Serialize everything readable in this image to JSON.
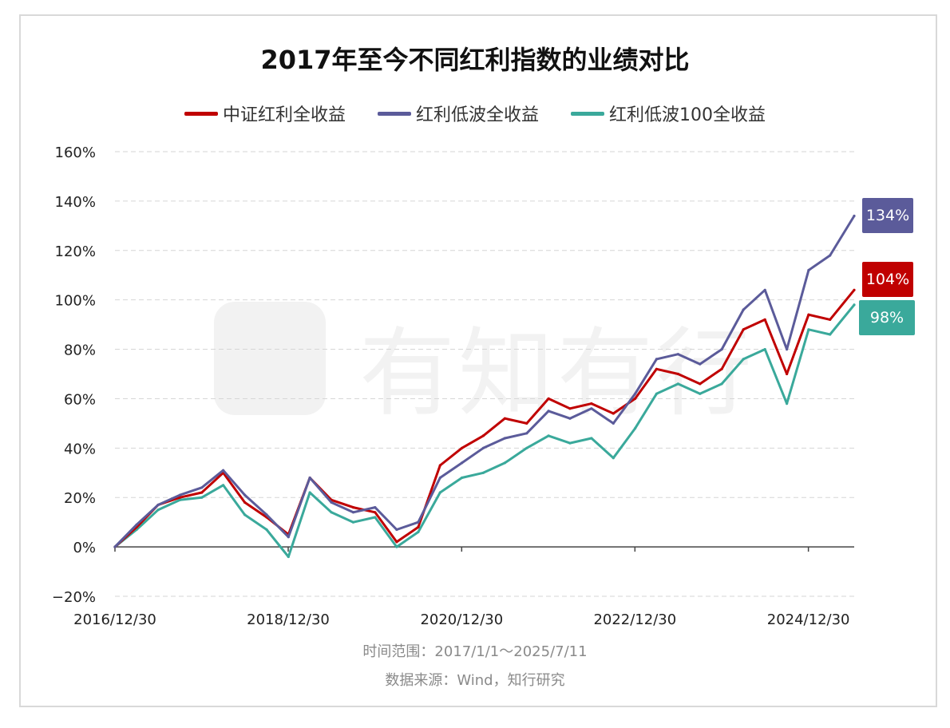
{
  "title": "2017年至今不同红利指数的业绩对比",
  "watermark_text": "有知有行",
  "footnote_range": "时间范围：2017/1/1～2025/7/11",
  "footnote_source": "数据来源：Wind，知行研究",
  "colors": {
    "red": "#c00000",
    "purple": "#5b5b9a",
    "teal": "#3aa99b"
  },
  "chart_data": {
    "type": "line",
    "title": "2017年至今不同红利指数的业绩对比",
    "xlabel": "",
    "ylabel": "",
    "y_unit": "%",
    "ylim": [
      -20,
      160
    ],
    "yticks": [
      -20,
      0,
      20,
      40,
      60,
      80,
      100,
      120,
      140,
      160
    ],
    "ytick_labels": [
      "−20%",
      "0%",
      "20%",
      "40%",
      "60%",
      "80%",
      "100%",
      "120%",
      "140%",
      "160%"
    ],
    "xlim": [
      "2016/12/30",
      "2025/07/11"
    ],
    "xtick_labels": [
      "2016/12/30",
      "2018/12/30",
      "2020/12/30",
      "2022/12/30",
      "2024/12/30"
    ],
    "grid": "horizontal dashed",
    "legend_position": "top-center",
    "x": [
      "2016/12/30",
      "2017/03/31",
      "2017/06/30",
      "2017/09/30",
      "2017/12/31",
      "2018/03/31",
      "2018/06/30",
      "2018/09/30",
      "2018/12/31",
      "2019/03/31",
      "2019/06/30",
      "2019/09/30",
      "2019/12/31",
      "2020/03/31",
      "2020/06/30",
      "2020/09/30",
      "2020/12/31",
      "2021/03/31",
      "2021/06/30",
      "2021/09/30",
      "2021/12/31",
      "2022/03/31",
      "2022/06/30",
      "2022/09/30",
      "2022/12/31",
      "2023/03/31",
      "2023/06/30",
      "2023/09/30",
      "2023/12/31",
      "2024/03/31",
      "2024/06/30",
      "2024/09/30",
      "2024/12/31",
      "2025/03/31",
      "2025/07/11"
    ],
    "series": [
      {
        "name": "中证红利全收益",
        "color": "#c00000",
        "end_label": "104%",
        "values": [
          0,
          8,
          17,
          20,
          22,
          30,
          18,
          12,
          5,
          28,
          19,
          16,
          14,
          2,
          8,
          33,
          40,
          45,
          52,
          50,
          60,
          56,
          58,
          54,
          60,
          72,
          70,
          66,
          72,
          88,
          92,
          70,
          94,
          92,
          104
        ]
      },
      {
        "name": "红利低波全收益",
        "color": "#5b5b9a",
        "end_label": "134%",
        "values": [
          0,
          9,
          17,
          21,
          24,
          31,
          21,
          13,
          4,
          28,
          18,
          14,
          16,
          7,
          10,
          28,
          34,
          40,
          44,
          46,
          55,
          52,
          56,
          50,
          62,
          76,
          78,
          74,
          80,
          96,
          104,
          80,
          112,
          118,
          134
        ]
      },
      {
        "name": "红利低波100全收益",
        "color": "#3aa99b",
        "end_label": "98%",
        "values": [
          0,
          7,
          15,
          19,
          20,
          25,
          13,
          7,
          -4,
          22,
          14,
          10,
          12,
          0,
          6,
          22,
          28,
          30,
          34,
          40,
          45,
          42,
          44,
          36,
          48,
          62,
          66,
          62,
          66,
          76,
          80,
          58,
          88,
          86,
          98
        ]
      }
    ]
  }
}
